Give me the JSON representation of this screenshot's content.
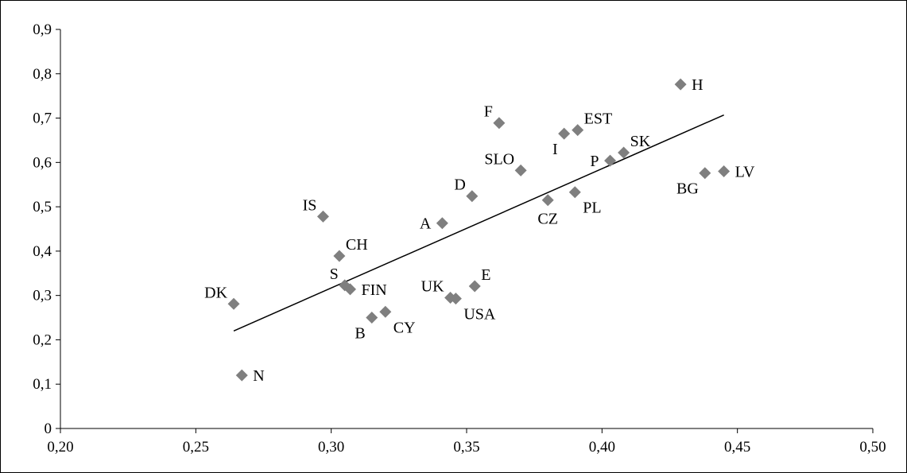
{
  "chart_data": {
    "type": "scatter",
    "title": "",
    "xlabel": "",
    "ylabel": "",
    "xlim": [
      0.2,
      0.5
    ],
    "ylim": [
      0,
      0.9
    ],
    "x_ticks": [
      "0,20",
      "0,25",
      "0,30",
      "0,35",
      "0,40",
      "0,45",
      "0,50"
    ],
    "y_ticks": [
      "0",
      "0,1",
      "0,2",
      "0,3",
      "0,4",
      "0,5",
      "0,6",
      "0,7",
      "0,8",
      "0,9"
    ],
    "grid": false,
    "legend": "none",
    "marker_color": "#7f7f7f",
    "trendline": {
      "from": [
        0.264,
        0.22
      ],
      "to": [
        0.445,
        0.707
      ]
    },
    "points": [
      {
        "label": "H",
        "x": 0.429,
        "y": 0.776,
        "pos": "right"
      },
      {
        "label": "F",
        "x": 0.362,
        "y": 0.689,
        "pos": "upleft"
      },
      {
        "label": "I",
        "x": 0.386,
        "y": 0.665,
        "pos": "downleft"
      },
      {
        "label": "EST",
        "x": 0.391,
        "y": 0.673,
        "pos": "upright"
      },
      {
        "label": "SK",
        "x": 0.408,
        "y": 0.622,
        "pos": "upright"
      },
      {
        "label": "P",
        "x": 0.403,
        "y": 0.604,
        "pos": "left"
      },
      {
        "label": "SLO",
        "x": 0.37,
        "y": 0.582,
        "pos": "upleft"
      },
      {
        "label": "LV",
        "x": 0.445,
        "y": 0.58,
        "pos": "right"
      },
      {
        "label": "BG",
        "x": 0.438,
        "y": 0.576,
        "pos": "downleft"
      },
      {
        "label": "D",
        "x": 0.352,
        "y": 0.524,
        "pos": "upleft"
      },
      {
        "label": "CZ",
        "x": 0.38,
        "y": 0.515,
        "pos": "down"
      },
      {
        "label": "PL",
        "x": 0.39,
        "y": 0.533,
        "pos": "downright"
      },
      {
        "label": "IS",
        "x": 0.297,
        "y": 0.478,
        "pos": "upleft"
      },
      {
        "label": "A",
        "x": 0.341,
        "y": 0.463,
        "pos": "left"
      },
      {
        "label": "CH",
        "x": 0.303,
        "y": 0.389,
        "pos": "upright"
      },
      {
        "label": "S",
        "x": 0.305,
        "y": 0.323,
        "pos": "upleft"
      },
      {
        "label": "FIN",
        "x": 0.307,
        "y": 0.314,
        "pos": "right"
      },
      {
        "label": "E",
        "x": 0.353,
        "y": 0.321,
        "pos": "upright"
      },
      {
        "label": "UK",
        "x": 0.344,
        "y": 0.295,
        "pos": "upleft"
      },
      {
        "label": "USA",
        "x": 0.346,
        "y": 0.293,
        "pos": "downright"
      },
      {
        "label": "DK",
        "x": 0.264,
        "y": 0.281,
        "pos": "upleft"
      },
      {
        "label": "CY",
        "x": 0.32,
        "y": 0.263,
        "pos": "downright"
      },
      {
        "label": "B",
        "x": 0.315,
        "y": 0.25,
        "pos": "downleft"
      },
      {
        "label": "N",
        "x": 0.267,
        "y": 0.12,
        "pos": "right"
      }
    ]
  }
}
